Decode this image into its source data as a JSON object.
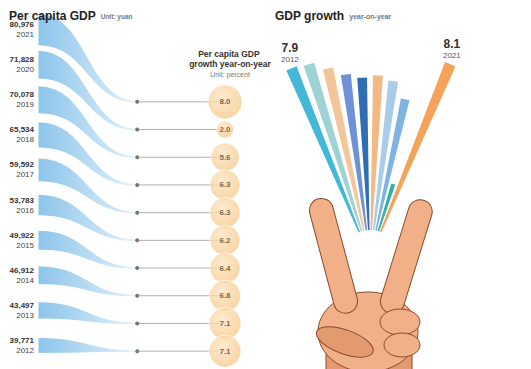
{
  "chart_data": [
    {
      "type": "flow",
      "title": "Per capita GDP",
      "subtitle": "Unit: yuan",
      "categories": [
        "2021",
        "2020",
        "2019",
        "2018",
        "2017",
        "2016",
        "2015",
        "2014",
        "2013",
        "2012"
      ],
      "values": [
        80976,
        71828,
        70078,
        65534,
        59592,
        53783,
        49922,
        46912,
        43497,
        39771
      ],
      "value_labels": [
        "80,976",
        "71,828",
        "70,078",
        "65,534",
        "59,592",
        "53,783",
        "49,922",
        "46,912",
        "43,497",
        "39,771"
      ],
      "color": "#8cc4ea",
      "data_labels": true
    },
    {
      "type": "bubble",
      "title": "Per capita GDP growth year-on-year",
      "subtitle": "Unit: percent",
      "categories": [
        "2021",
        "2020",
        "2019",
        "2018",
        "2017",
        "2016",
        "2015",
        "2014",
        "2013",
        "2012"
      ],
      "values": [
        8.0,
        2.0,
        5.6,
        6.3,
        6.3,
        6.2,
        6.4,
        6.8,
        7.1,
        7.1
      ],
      "value_labels": [
        "8.0",
        "2.0",
        "5.6",
        "6.3",
        "6.3",
        "6.2",
        "6.4",
        "6.8",
        "7.1",
        "7.1"
      ],
      "color": "#f6c98c",
      "data_labels": true
    },
    {
      "type": "bar",
      "title": "GDP growth",
      "subtitle": "year-on-year",
      "categories": [
        "2012",
        null,
        null,
        null,
        null,
        null,
        null,
        null,
        null,
        "2021"
      ],
      "values": [
        7.9,
        7.8,
        7.4,
        7.0,
        6.8,
        6.9,
        6.7,
        6.0,
        2.2,
        8.1
      ],
      "value_labels": [
        "7.9",
        null,
        null,
        null,
        null,
        null,
        null,
        null,
        null,
        "8.1"
      ],
      "colors": [
        "#45b8d8",
        "#9fd3d3",
        "#f5c59a",
        "#6d93d6",
        "#2f6db5",
        "#f3b883",
        "#a9cce9",
        "#7fb3e0",
        "#2db3ad",
        "#f4a35b"
      ],
      "ylim": [
        0,
        9
      ],
      "data_labels": true,
      "tick_labels": false
    }
  ]
}
